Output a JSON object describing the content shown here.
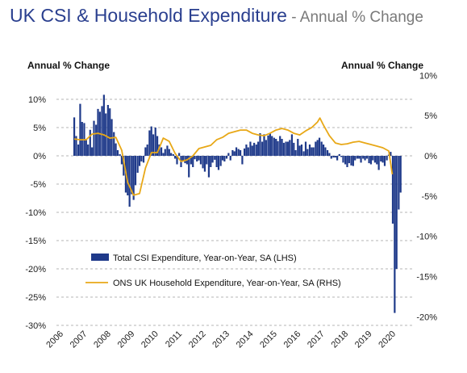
{
  "title": {
    "main": "UK CSI & Household Expenditure",
    "separator": " - ",
    "sub": "Annual % Change"
  },
  "chart_data": {
    "type": "bar+line",
    "left_axis_label": "Annual % Change",
    "right_axis_label": "Annual % Change",
    "left_ylim": [
      -30,
      10
    ],
    "right_ylim": [
      -20,
      10
    ],
    "left_ticks": [
      "10%",
      "5%",
      "0%",
      "-5%",
      "-10%",
      "-15%",
      "-20%",
      "-25%",
      "-30%"
    ],
    "right_ticks": [
      "10%",
      "5%",
      "0%",
      "-5%",
      "-10%",
      "-15%",
      "-20%"
    ],
    "x_ticks": [
      "2006",
      "2007",
      "2008",
      "2009",
      "2010",
      "2011",
      "2012",
      "2013",
      "2014",
      "2015",
      "2016",
      "2017",
      "2018",
      "2019",
      "2020"
    ],
    "xlim": [
      2006.0,
      2020.85
    ],
    "series": [
      {
        "name": "Total CSI Expenditure, Year-on-Year, SA (LHS)",
        "type": "bar",
        "axis": "left",
        "color": "#1f3a8a",
        "points": [
          [
            2006.75,
            6.8
          ],
          [
            2006.83,
            3.5
          ],
          [
            2006.92,
            2.0
          ],
          [
            2007.0,
            9.2
          ],
          [
            2007.08,
            6.0
          ],
          [
            2007.17,
            5.8
          ],
          [
            2007.25,
            3.0
          ],
          [
            2007.33,
            2.0
          ],
          [
            2007.42,
            4.6
          ],
          [
            2007.5,
            1.5
          ],
          [
            2007.58,
            6.2
          ],
          [
            2007.67,
            5.5
          ],
          [
            2007.75,
            8.3
          ],
          [
            2007.83,
            7.8
          ],
          [
            2007.92,
            8.8
          ],
          [
            2008.0,
            10.8
          ],
          [
            2008.08,
            7.5
          ],
          [
            2008.17,
            9.0
          ],
          [
            2008.25,
            8.4
          ],
          [
            2008.33,
            6.5
          ],
          [
            2008.42,
            4.2
          ],
          [
            2008.5,
            2.2
          ],
          [
            2008.58,
            1.0
          ],
          [
            2008.67,
            0.3
          ],
          [
            2008.75,
            -1.5
          ],
          [
            2008.83,
            -3.5
          ],
          [
            2008.92,
            -6.5
          ],
          [
            2009.0,
            -7.0
          ],
          [
            2009.08,
            -9.0
          ],
          [
            2009.17,
            -6.8
          ],
          [
            2009.25,
            -7.8
          ],
          [
            2009.33,
            -5.2
          ],
          [
            2009.42,
            -3.0
          ],
          [
            2009.5,
            -1.8
          ],
          [
            2009.58,
            -1.0
          ],
          [
            2009.67,
            -1.2
          ],
          [
            2009.75,
            1.5
          ],
          [
            2009.83,
            2.0
          ],
          [
            2009.92,
            4.5
          ],
          [
            2010.0,
            5.2
          ],
          [
            2010.08,
            3.8
          ],
          [
            2010.17,
            5.0
          ],
          [
            2010.25,
            3.5
          ],
          [
            2010.33,
            2.0
          ],
          [
            2010.42,
            1.5
          ],
          [
            2010.5,
            0.5
          ],
          [
            2010.58,
            1.2
          ],
          [
            2010.67,
            1.8
          ],
          [
            2010.75,
            1.2
          ],
          [
            2010.83,
            0.5
          ],
          [
            2010.92,
            0.3
          ],
          [
            2011.0,
            -0.5
          ],
          [
            2011.08,
            -1.5
          ],
          [
            2011.17,
            0.5
          ],
          [
            2011.25,
            -2.0
          ],
          [
            2011.33,
            -1.0
          ],
          [
            2011.42,
            -1.3
          ],
          [
            2011.5,
            -1.5
          ],
          [
            2011.58,
            -3.8
          ],
          [
            2011.67,
            -1.5
          ],
          [
            2011.75,
            -2.0
          ],
          [
            2011.83,
            -0.6
          ],
          [
            2011.92,
            -1.0
          ],
          [
            2012.0,
            -0.8
          ],
          [
            2012.08,
            -1.5
          ],
          [
            2012.17,
            -2.2
          ],
          [
            2012.25,
            -2.8
          ],
          [
            2012.33,
            -1.5
          ],
          [
            2012.42,
            -3.8
          ],
          [
            2012.5,
            -2.0
          ],
          [
            2012.58,
            -1.2
          ],
          [
            2012.67,
            -0.7
          ],
          [
            2012.75,
            -2.0
          ],
          [
            2012.83,
            -2.5
          ],
          [
            2012.92,
            -1.8
          ],
          [
            2013.0,
            -0.8
          ],
          [
            2013.08,
            -1.0
          ],
          [
            2013.17,
            -0.5
          ],
          [
            2013.25,
            0.5
          ],
          [
            2013.33,
            -0.8
          ],
          [
            2013.42,
            1.0
          ],
          [
            2013.5,
            0.8
          ],
          [
            2013.58,
            1.5
          ],
          [
            2013.67,
            1.2
          ],
          [
            2013.75,
            1.0
          ],
          [
            2013.83,
            -1.5
          ],
          [
            2013.92,
            1.3
          ],
          [
            2014.0,
            2.0
          ],
          [
            2014.08,
            1.5
          ],
          [
            2014.17,
            2.5
          ],
          [
            2014.25,
            1.8
          ],
          [
            2014.33,
            2.3
          ],
          [
            2014.42,
            2.0
          ],
          [
            2014.5,
            2.5
          ],
          [
            2014.58,
            4.0
          ],
          [
            2014.67,
            2.5
          ],
          [
            2014.75,
            3.8
          ],
          [
            2014.83,
            2.8
          ],
          [
            2014.92,
            3.6
          ],
          [
            2015.0,
            4.0
          ],
          [
            2015.08,
            3.5
          ],
          [
            2015.17,
            3.2
          ],
          [
            2015.25,
            3.0
          ],
          [
            2015.33,
            2.6
          ],
          [
            2015.42,
            3.5
          ],
          [
            2015.5,
            3.0
          ],
          [
            2015.58,
            2.3
          ],
          [
            2015.67,
            2.5
          ],
          [
            2015.75,
            2.5
          ],
          [
            2015.83,
            2.8
          ],
          [
            2015.92,
            3.8
          ],
          [
            2016.0,
            2.3
          ],
          [
            2016.08,
            1.0
          ],
          [
            2016.17,
            3.0
          ],
          [
            2016.25,
            1.8
          ],
          [
            2016.33,
            2.0
          ],
          [
            2016.42,
            0.8
          ],
          [
            2016.5,
            2.5
          ],
          [
            2016.58,
            1.2
          ],
          [
            2016.67,
            2.0
          ],
          [
            2016.75,
            1.5
          ],
          [
            2016.83,
            1.5
          ],
          [
            2016.92,
            2.5
          ],
          [
            2017.0,
            2.8
          ],
          [
            2017.08,
            3.2
          ],
          [
            2017.17,
            2.5
          ],
          [
            2017.25,
            2.0
          ],
          [
            2017.33,
            1.5
          ],
          [
            2017.42,
            1.0
          ],
          [
            2017.5,
            0.5
          ],
          [
            2017.58,
            -0.5
          ],
          [
            2017.67,
            -0.3
          ],
          [
            2017.75,
            -0.3
          ],
          [
            2017.83,
            -0.8
          ],
          [
            2017.92,
            0.3
          ],
          [
            2018.0,
            -0.2
          ],
          [
            2018.08,
            -1.2
          ],
          [
            2018.17,
            -1.5
          ],
          [
            2018.25,
            -2.0
          ],
          [
            2018.33,
            -1.3
          ],
          [
            2018.42,
            -1.7
          ],
          [
            2018.5,
            -1.8
          ],
          [
            2018.58,
            -0.8
          ],
          [
            2018.67,
            -0.5
          ],
          [
            2018.75,
            -0.5
          ],
          [
            2018.83,
            -1.2
          ],
          [
            2018.92,
            -0.5
          ],
          [
            2019.0,
            -0.8
          ],
          [
            2019.08,
            -0.5
          ],
          [
            2019.17,
            -1.3
          ],
          [
            2019.25,
            -1.5
          ],
          [
            2019.33,
            -0.8
          ],
          [
            2019.42,
            -1.2
          ],
          [
            2019.5,
            -1.5
          ],
          [
            2019.58,
            -2.5
          ],
          [
            2019.67,
            -1.0
          ],
          [
            2019.75,
            -1.2
          ],
          [
            2019.83,
            -1.8
          ],
          [
            2019.92,
            -0.8
          ],
          [
            2020.0,
            0.2
          ],
          [
            2020.08,
            0.7
          ],
          [
            2020.17,
            -12.0
          ],
          [
            2020.25,
            -27.8
          ],
          [
            2020.33,
            -20.0
          ],
          [
            2020.42,
            -9.5
          ],
          [
            2020.5,
            -6.5
          ]
        ]
      },
      {
        "name": "ONS UK Household Expenditure, Year-on-Year, SA (RHS)",
        "type": "line",
        "axis": "right",
        "color": "#e8a817",
        "points": [
          [
            2006.75,
            2.1
          ],
          [
            2007.0,
            2.0
          ],
          [
            2007.25,
            2.0
          ],
          [
            2007.5,
            2.7
          ],
          [
            2007.75,
            2.8
          ],
          [
            2008.0,
            2.6
          ],
          [
            2008.25,
            2.2
          ],
          [
            2008.5,
            2.3
          ],
          [
            2008.75,
            0.7
          ],
          [
            2009.0,
            -3.3
          ],
          [
            2009.25,
            -4.9
          ],
          [
            2009.5,
            -4.7
          ],
          [
            2009.75,
            -1.5
          ],
          [
            2010.0,
            0.4
          ],
          [
            2010.25,
            0.4
          ],
          [
            2010.5,
            2.2
          ],
          [
            2010.75,
            1.8
          ],
          [
            2011.0,
            0.3
          ],
          [
            2011.25,
            -0.7
          ],
          [
            2011.5,
            -0.5
          ],
          [
            2011.75,
            0.0
          ],
          [
            2012.0,
            0.9
          ],
          [
            2012.25,
            1.1
          ],
          [
            2012.5,
            1.3
          ],
          [
            2012.75,
            2.0
          ],
          [
            2013.0,
            2.3
          ],
          [
            2013.25,
            2.8
          ],
          [
            2013.5,
            3.0
          ],
          [
            2013.75,
            3.2
          ],
          [
            2014.0,
            3.2
          ],
          [
            2014.25,
            2.8
          ],
          [
            2014.5,
            2.6
          ],
          [
            2014.75,
            2.5
          ],
          [
            2015.0,
            2.8
          ],
          [
            2015.25,
            3.2
          ],
          [
            2015.5,
            3.4
          ],
          [
            2015.75,
            3.2
          ],
          [
            2016.0,
            2.8
          ],
          [
            2016.25,
            2.6
          ],
          [
            2016.5,
            3.1
          ],
          [
            2016.75,
            3.5
          ],
          [
            2017.0,
            4.2
          ],
          [
            2017.1,
            4.7
          ],
          [
            2017.25,
            3.8
          ],
          [
            2017.5,
            2.5
          ],
          [
            2017.75,
            1.6
          ],
          [
            2018.0,
            1.4
          ],
          [
            2018.25,
            1.5
          ],
          [
            2018.5,
            1.7
          ],
          [
            2018.75,
            1.8
          ],
          [
            2019.0,
            1.6
          ],
          [
            2019.25,
            1.4
          ],
          [
            2019.5,
            1.2
          ],
          [
            2019.75,
            1.0
          ],
          [
            2020.0,
            0.6
          ],
          [
            2020.15,
            -2.3
          ]
        ]
      }
    ],
    "legend": [
      "Total CSI Expenditure, Year-on-Year, SA (LHS)",
      "ONS UK Household Expenditure, Year-on-Year, SA (RHS)"
    ],
    "legend_position": "bottom-left inside",
    "grid": "horizontal dashed"
  }
}
